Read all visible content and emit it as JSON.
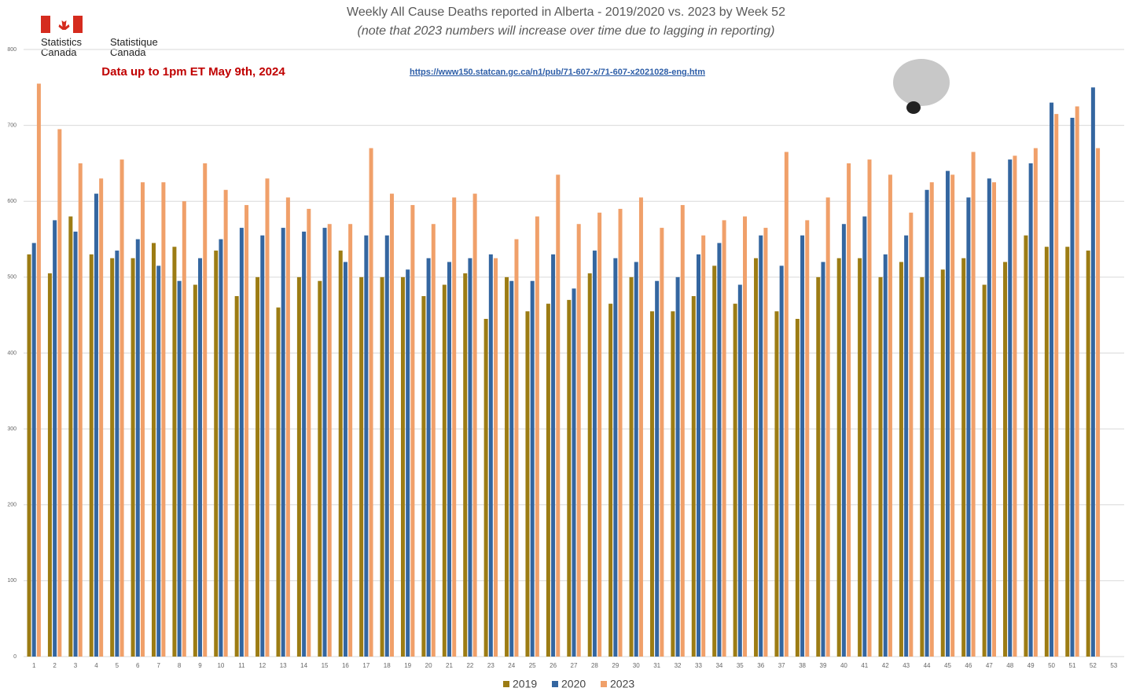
{
  "chart_data": {
    "type": "bar",
    "title": "Weekly All Cause Deaths reported in Alberta - 2019/2020 vs. 2023 by Week 52",
    "subtitle": "(note that 2023 numbers will increase over time due to lagging in reporting)",
    "annotations": [
      "Data up to 1pm ET May 9th, 2024",
      "https://www150.statcan.gc.ca/n1/pub/71-607-x/71-607-x2021028-eng.htm"
    ],
    "logo": [
      "Statistics Canada",
      "Statistique Canada"
    ],
    "categories": [
      1,
      2,
      3,
      4,
      5,
      6,
      7,
      8,
      9,
      10,
      11,
      12,
      13,
      14,
      15,
      16,
      17,
      18,
      19,
      20,
      21,
      22,
      23,
      24,
      25,
      26,
      27,
      28,
      29,
      30,
      31,
      32,
      33,
      34,
      35,
      36,
      37,
      38,
      39,
      40,
      41,
      42,
      43,
      44,
      45,
      46,
      47,
      48,
      49,
      50,
      51,
      52,
      53
    ],
    "series": [
      {
        "name": "2019",
        "color": "#9c7c14",
        "values": [
          530,
          505,
          580,
          530,
          525,
          525,
          545,
          540,
          490,
          535,
          475,
          500,
          460,
          500,
          495,
          535,
          500,
          500,
          500,
          475,
          490,
          505,
          445,
          500,
          455,
          465,
          470,
          505,
          465,
          500,
          455,
          455,
          475,
          515,
          465,
          525,
          455,
          445,
          500,
          525,
          525,
          500,
          520,
          500,
          510,
          525,
          490,
          520,
          555,
          540,
          540,
          535,
          null
        ]
      },
      {
        "name": "2020",
        "color": "#3466a0",
        "values": [
          545,
          575,
          560,
          610,
          535,
          550,
          515,
          495,
          525,
          550,
          565,
          555,
          565,
          560,
          565,
          520,
          555,
          555,
          510,
          525,
          520,
          525,
          530,
          495,
          495,
          530,
          485,
          535,
          525,
          520,
          495,
          500,
          530,
          545,
          490,
          555,
          515,
          555,
          520,
          570,
          580,
          530,
          555,
          615,
          640,
          605,
          630,
          655,
          650,
          730,
          710,
          750,
          null
        ]
      },
      {
        "name": "2023",
        "color": "#f0a06a",
        "values": [
          755,
          695,
          650,
          630,
          655,
          625,
          625,
          600,
          650,
          615,
          595,
          630,
          605,
          590,
          570,
          570,
          670,
          610,
          595,
          570,
          605,
          610,
          525,
          550,
          580,
          635,
          570,
          585,
          590,
          605,
          565,
          595,
          555,
          575,
          580,
          565,
          665,
          575,
          605,
          650,
          655,
          635,
          585,
          625,
          635,
          665,
          625,
          660,
          670,
          715,
          725,
          670,
          null
        ]
      }
    ],
    "ylim": [
      0,
      800
    ],
    "yticks": [
      0,
      100,
      200,
      300,
      400,
      500,
      600,
      700,
      800
    ],
    "grid": true
  }
}
